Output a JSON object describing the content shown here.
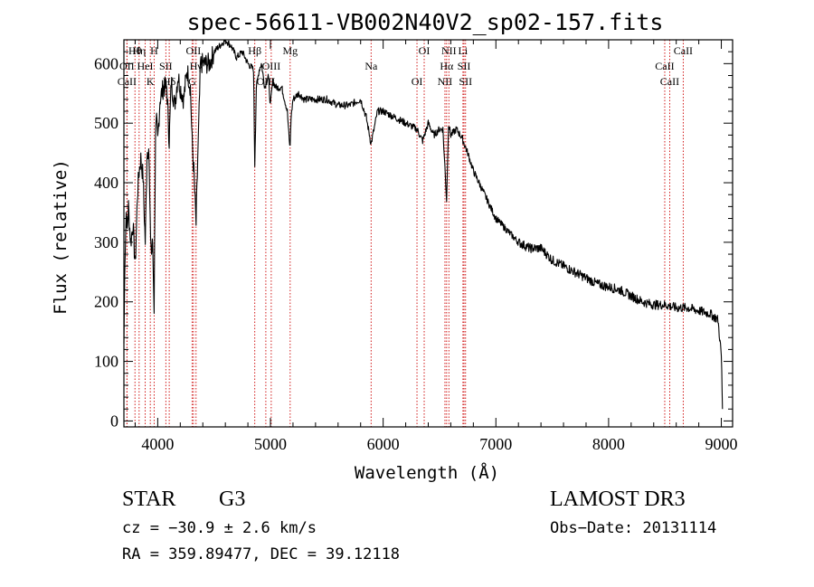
{
  "chart_data": {
    "type": "line",
    "title": "spec-56611-VB002N40V2_sp02-157.fits",
    "xlabel": "Wavelength (Å)",
    "ylabel": "Flux (relative)",
    "xlim": [
      3700,
      9100
    ],
    "ylim": [
      -10,
      640
    ],
    "xticks": [
      4000,
      5000,
      6000,
      7000,
      8000,
      9000
    ],
    "yticks": [
      0,
      100,
      200,
      300,
      400,
      500,
      600
    ],
    "xtick_labels": [
      "4000",
      "5000",
      "6000",
      "7000",
      "8000",
      "9000"
    ],
    "ytick_labels": [
      "0",
      "100",
      "200",
      "300",
      "400",
      "500",
      "600"
    ],
    "spectrum": {
      "name": "flux",
      "color": "#000000",
      "x": [
        3700,
        3710,
        3720,
        3730,
        3740,
        3760,
        3780,
        3800,
        3820,
        3835,
        3850,
        3870,
        3889,
        3905,
        3920,
        3933,
        3945,
        3955,
        3968,
        3980,
        3990,
        4000,
        4020,
        4050,
        4080,
        4102,
        4120,
        4150,
        4180,
        4200,
        4230,
        4260,
        4290,
        4305,
        4320,
        4340,
        4355,
        4380,
        4420,
        4460,
        4500,
        4550,
        4600,
        4650,
        4700,
        4750,
        4800,
        4850,
        4861,
        4875,
        4900,
        4920,
        4950,
        4980,
        5000,
        5020,
        5050,
        5100,
        5150,
        5167,
        5175,
        5183,
        5200,
        5250,
        5300,
        5400,
        5500,
        5600,
        5700,
        5800,
        5850,
        5893,
        5950,
        6000,
        6100,
        6200,
        6300,
        6350,
        6400,
        6450,
        6500,
        6530,
        6563,
        6580,
        6600,
        6650,
        6700,
        6750,
        6800,
        6850,
        6900,
        6950,
        7000,
        7050,
        7100,
        7200,
        7300,
        7350,
        7400,
        7500,
        7600,
        7700,
        7800,
        7900,
        8000,
        8100,
        8200,
        8300,
        8400,
        8500,
        8600,
        8700,
        8800,
        8900,
        8970,
        9000,
        9010
      ],
      "y": [
        130,
        280,
        350,
        320,
        360,
        300,
        330,
        260,
        380,
        420,
        440,
        410,
        300,
        450,
        460,
        330,
        280,
        300,
        190,
        480,
        500,
        470,
        540,
        560,
        560,
        470,
        570,
        530,
        580,
        560,
        540,
        590,
        560,
        470,
        420,
        330,
        440,
        600,
        600,
        600,
        620,
        630,
        640,
        630,
        610,
        620,
        600,
        590,
        430,
        560,
        590,
        600,
        560,
        580,
        530,
        570,
        560,
        560,
        520,
        470,
        460,
        510,
        540,
        550,
        540,
        540,
        540,
        530,
        530,
        540,
        510,
        465,
        520,
        520,
        510,
        500,
        490,
        470,
        500,
        480,
        490,
        490,
        370,
        500,
        480,
        490,
        475,
        450,
        420,
        400,
        380,
        360,
        340,
        330,
        320,
        300,
        290,
        290,
        290,
        270,
        260,
        250,
        240,
        230,
        225,
        220,
        210,
        200,
        195,
        195,
        190,
        190,
        185,
        180,
        170,
        110,
        20
      ]
    },
    "spectral_lines": [
      {
        "name": "Hθ",
        "wavelength": 3798
      },
      {
        "name": "OII",
        "wavelength": 3727
      },
      {
        "name": "CaII",
        "wavelength": 3727
      },
      {
        "name": "Hη",
        "wavelength": 3835
      },
      {
        "name": "HeI",
        "wavelength": 3889
      },
      {
        "name": "K",
        "wavelength": 3934
      },
      {
        "name": "H",
        "wavelength": 3968
      },
      {
        "name": "SII",
        "wavelength": 4072
      },
      {
        "name": "Hδ",
        "wavelength": 4102
      },
      {
        "name": "OII",
        "wavelength": 4317
      },
      {
        "name": "Hγ",
        "wavelength": 4340
      },
      {
        "name": "G",
        "wavelength": 4305
      },
      {
        "name": "Hβ",
        "wavelength": 4861
      },
      {
        "name": "OIII",
        "wavelength": 5007
      },
      {
        "name": "OIII",
        "wavelength": 4959
      },
      {
        "name": "Mg",
        "wavelength": 5175
      },
      {
        "name": "Na",
        "wavelength": 5893
      },
      {
        "name": "OI",
        "wavelength": 6300
      },
      {
        "name": "OI",
        "wavelength": 6364
      },
      {
        "name": "Hα",
        "wavelength": 6563
      },
      {
        "name": "NII",
        "wavelength": 6548
      },
      {
        "name": "NII",
        "wavelength": 6583
      },
      {
        "name": "SII",
        "wavelength": 6717
      },
      {
        "name": "SII",
        "wavelength": 6731
      },
      {
        "name": "Li",
        "wavelength": 6708
      },
      {
        "name": "CaII",
        "wavelength": 8498
      },
      {
        "name": "CaII",
        "wavelength": 8542
      },
      {
        "name": "CaII",
        "wavelength": 8662
      }
    ],
    "line_color": "#cc0000"
  },
  "info": {
    "object_class": "STAR",
    "subclass": "G3",
    "survey": "LAMOST DR3",
    "cz": "cz = −30.9 ± 2.6 km/s",
    "obs_date": "Obs−Date: 20131114",
    "coords": "RA = 359.89477, DEC =  39.12118"
  }
}
